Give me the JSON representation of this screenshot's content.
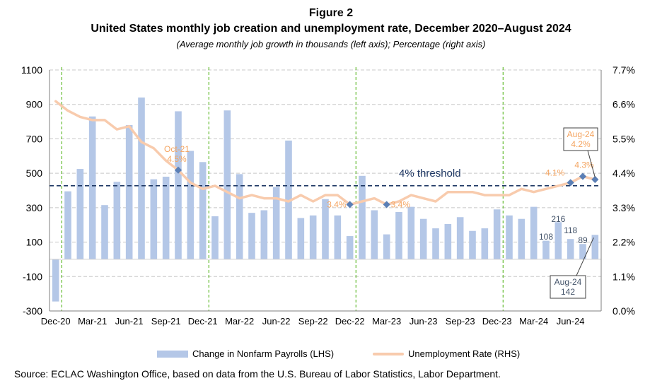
{
  "figure_label": "Figure 2",
  "title": "United States monthly job creation and unemployment rate, December 2020–August 2024",
  "subtitle": "(Average monthly job growth in thousands (left axis); Percentage (right axis)",
  "source": "Source: ECLAC Washington Office, based on data from the U.S. Bureau of Labor Statistics, Labor Department.",
  "legend": {
    "bars_label": "Change in Nonfarm Payrolls (LHS)",
    "line_label": "Unemployment Rate (RHS)"
  },
  "colors": {
    "bars": "#b4c7e7",
    "line": "#f8cbad",
    "marker": "#5b7fb5",
    "threshold": "#1f3864",
    "vline": "#70c040",
    "orange_text": "#f4a460",
    "blue_text": "#44546a",
    "grid": "#c8c8c8"
  },
  "chart_data": {
    "type": "bar+line",
    "left_axis": {
      "min": -300,
      "max": 1100,
      "ticks": [
        "1100",
        "900",
        "700",
        "500",
        "300",
        "100",
        "-100",
        "-300"
      ]
    },
    "right_axis": {
      "min": 0.0,
      "max": 7.7,
      "ticks": [
        "7.7%",
        "6.6%",
        "5.5%",
        "4.4%",
        "3.3%",
        "2.2%",
        "1.1%",
        "0.0%"
      ]
    },
    "x_tick_labels": [
      "Dec-20",
      "Mar-21",
      "Jun-21",
      "Sep-21",
      "Dec-21",
      "Mar-22",
      "Jun-22",
      "Sep-22",
      "Dec-22",
      "Mar-23",
      "Jun-23",
      "Sep-23",
      "Dec-23",
      "Mar-24",
      "Jun-24"
    ],
    "months": [
      "Dec-20",
      "Jan-21",
      "Feb-21",
      "Mar-21",
      "Apr-21",
      "May-21",
      "Jun-21",
      "Jul-21",
      "Aug-21",
      "Sep-21",
      "Oct-21",
      "Nov-21",
      "Dec-21",
      "Jan-22",
      "Feb-22",
      "Mar-22",
      "Apr-22",
      "May-22",
      "Jun-22",
      "Jul-22",
      "Aug-22",
      "Sep-22",
      "Oct-22",
      "Nov-22",
      "Dec-22",
      "Jan-23",
      "Feb-23",
      "Mar-23",
      "Apr-23",
      "May-23",
      "Jun-23",
      "Jul-23",
      "Aug-23",
      "Sep-23",
      "Oct-23",
      "Nov-23",
      "Dec-23",
      "Jan-24",
      "Feb-24",
      "Mar-24",
      "Apr-24",
      "May-24",
      "Jun-24",
      "Jul-24",
      "Aug-24"
    ],
    "payrolls": [
      -245,
      395,
      525,
      830,
      315,
      450,
      780,
      940,
      465,
      480,
      860,
      630,
      565,
      250,
      865,
      495,
      270,
      285,
      420,
      690,
      240,
      255,
      350,
      255,
      135,
      485,
      285,
      145,
      275,
      305,
      235,
      180,
      205,
      245,
      165,
      180,
      290,
      255,
      235,
      305,
      108,
      216,
      118,
      89,
      142
    ],
    "unemployment": [
      6.7,
      6.4,
      6.2,
      6.1,
      6.1,
      5.8,
      5.9,
      5.4,
      5.2,
      4.8,
      4.5,
      4.1,
      3.9,
      4.0,
      3.8,
      3.6,
      3.7,
      3.6,
      3.6,
      3.5,
      3.7,
      3.5,
      3.7,
      3.7,
      3.4,
      3.5,
      3.6,
      3.4,
      3.5,
      3.7,
      3.6,
      3.5,
      3.8,
      3.8,
      3.8,
      3.7,
      3.7,
      3.7,
      3.9,
      3.8,
      3.9,
      4.0,
      4.1,
      4.3,
      4.2
    ],
    "threshold": {
      "value": 4.0,
      "label": "4% threshold"
    },
    "vertical_markers": [
      "Dec-20",
      "Dec-21",
      "Dec-22",
      "Dec-23"
    ],
    "highlight_points": [
      {
        "month": "Oct-21",
        "label": "4.5%",
        "month_label": "Oct-21"
      },
      {
        "month": "Dec-22",
        "label": "3.4%"
      },
      {
        "month": "Mar-23",
        "label": "3.4%"
      },
      {
        "month": "Jun-24",
        "label": "4.1%"
      },
      {
        "month": "Jul-24",
        "label": "4.3%"
      },
      {
        "month": "Aug-24",
        "label": "4.2%"
      }
    ],
    "bar_labels": [
      {
        "month": "Apr-24",
        "label": "108"
      },
      {
        "month": "May-24",
        "label": "216"
      },
      {
        "month": "Jun-24",
        "label": "118"
      },
      {
        "month": "Jul-24",
        "label": "89"
      }
    ],
    "callouts": {
      "rate": {
        "line1": "Aug-24",
        "line2": "4.2%"
      },
      "payroll": {
        "line1": "Aug-24",
        "line2": "142"
      }
    }
  }
}
